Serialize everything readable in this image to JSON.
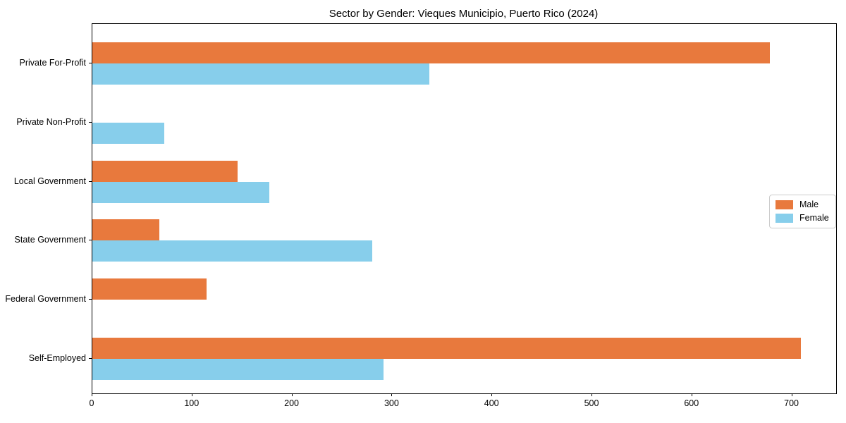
{
  "chart_data": {
    "type": "bar",
    "orientation": "horizontal",
    "title": "Sector by Gender: Vieques Municipio, Puerto Rico (2024)",
    "categories": [
      "Private For-Profit",
      "Private Non-Profit",
      "Local Government",
      "State Government",
      "Federal Government",
      "Self-Employed"
    ],
    "series": [
      {
        "name": "Male",
        "color": "#E8793D",
        "values": [
          678,
          0,
          145,
          67,
          114,
          709
        ]
      },
      {
        "name": "Female",
        "color": "#87CEEB",
        "values": [
          337,
          72,
          177,
          280,
          0,
          291
        ]
      }
    ],
    "xlabel": "",
    "ylabel": "",
    "x_ticks": [
      0,
      100,
      200,
      300,
      400,
      500,
      600,
      700
    ],
    "xlim": [
      0,
      744
    ],
    "ylim_categories_top_to_bottom": true,
    "grid": false,
    "legend_position": "center right",
    "background_color": "#ffffff",
    "axis_color": "#000000"
  }
}
